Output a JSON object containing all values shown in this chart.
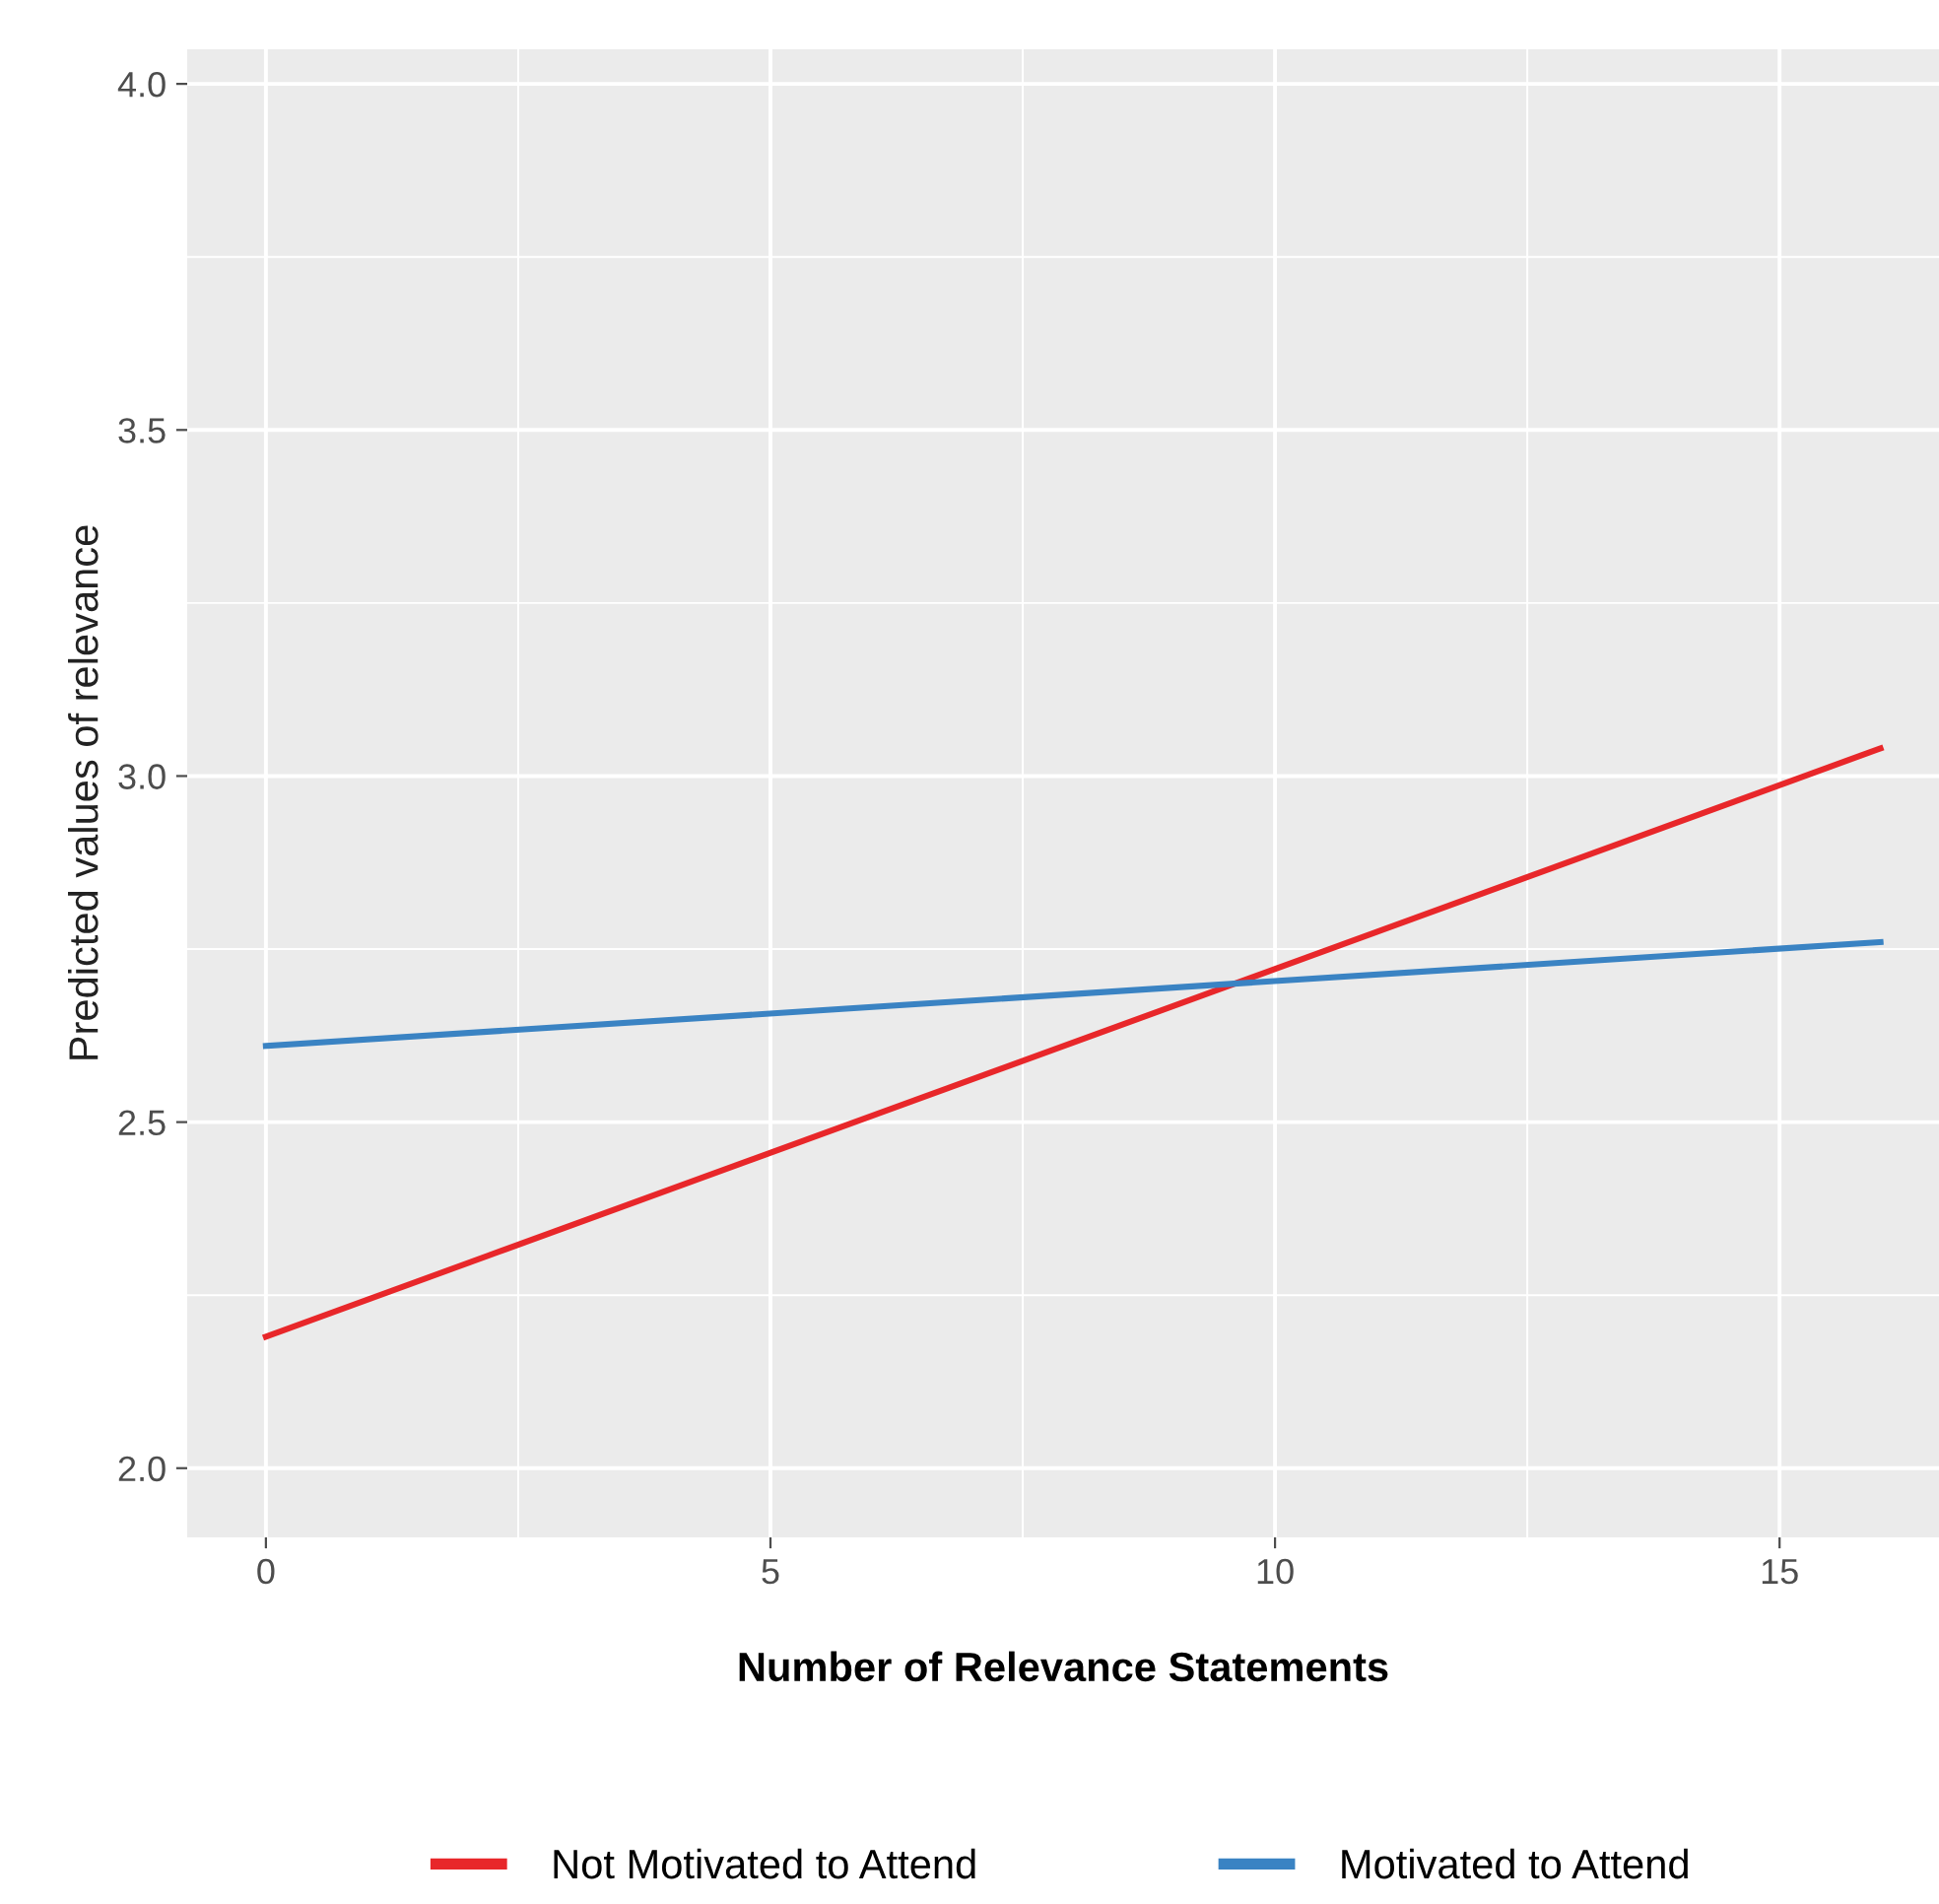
{
  "chart_data": {
    "type": "line",
    "xlabel": "Number of Relevance Statements",
    "ylabel": "Predicted values of relevance",
    "x": [
      0,
      16
    ],
    "series": [
      {
        "name": "Not Motivated to Attend",
        "color": "#e8272a",
        "values": [
          2.19,
          3.04
        ]
      },
      {
        "name": "Motivated to Attend",
        "color": "#3a83c3",
        "values": [
          2.61,
          2.76
        ]
      }
    ],
    "xlim": [
      -0.78,
      16.58
    ],
    "ylim": [
      1.9,
      4.05
    ],
    "xticks": [
      0,
      5,
      10,
      15
    ],
    "yticks": [
      {
        "value": 2,
        "label": "2.0"
      },
      2.5,
      {
        "value": 3,
        "label": "3.0"
      },
      3.5,
      {
        "value": 4,
        "label": "4.0"
      }
    ],
    "grid": true,
    "legend": "bottom",
    "line_style": "solid",
    "marker": "none"
  }
}
